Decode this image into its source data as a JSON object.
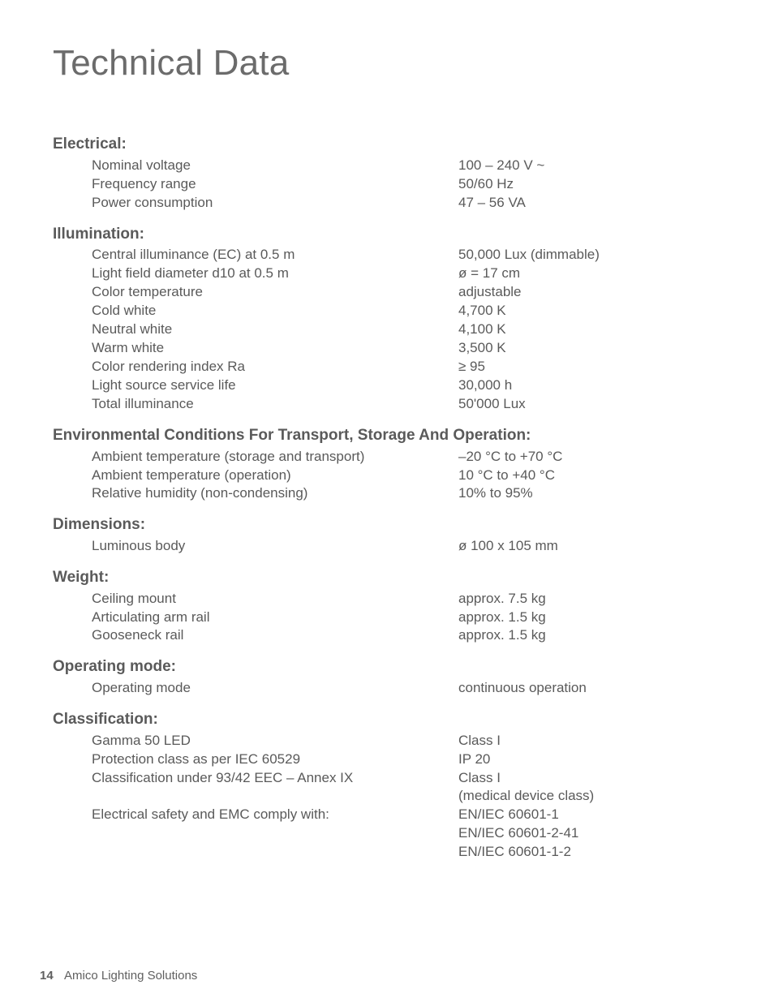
{
  "title": "Technical Data",
  "sections": [
    {
      "heading": "Electrical:",
      "rows": [
        {
          "label": "Nominal voltage",
          "value": "100 – 240 V ~"
        },
        {
          "label": "Frequency range",
          "value": "50/60 Hz"
        },
        {
          "label": "Power consumption",
          "value": "47 – 56 VA"
        }
      ]
    },
    {
      "heading": "Illumination:",
      "rows": [
        {
          "label": "Central illuminance (EC) at 0.5 m",
          "value": "50,000 Lux (dimmable)"
        },
        {
          "label": "Light field diameter d10 at 0.5 m",
          "value": "ø = 17 cm"
        },
        {
          "label": "Color temperature",
          "value": "adjustable"
        },
        {
          "label": "Cold white",
          "value": "4,700 K"
        },
        {
          "label": "Neutral white",
          "value": "4,100 K"
        },
        {
          "label": "Warm white",
          "value": "3,500 K"
        },
        {
          "label": "Color rendering index Ra",
          "value": "≥ 95"
        },
        {
          "label": "Light source service life",
          "value": "30,000 h"
        },
        {
          "label": "Total illuminance",
          "value": "50'000 Lux"
        }
      ]
    },
    {
      "heading": "Environmental Conditions For Transport, Storage And Operation:",
      "rows": [
        {
          "label": "Ambient temperature (storage and transport)",
          "value": "–20 °C to +70 °C"
        },
        {
          "label": "Ambient temperature (operation)",
          "value": "10 °C to +40 °C"
        },
        {
          "label": "Relative humidity (non-condensing)",
          "value": "10% to 95%"
        }
      ]
    },
    {
      "heading": "Dimensions:",
      "rows": [
        {
          "label": "Luminous body",
          "value": "ø 100 x 105 mm"
        }
      ]
    },
    {
      "heading": "Weight:",
      "rows": [
        {
          "label": "Ceiling mount",
          "value": "approx. 7.5 kg"
        },
        {
          "label": "Articulating arm rail",
          "value": "approx. 1.5 kg"
        },
        {
          "label": "Gooseneck rail",
          "value": "approx. 1.5 kg"
        }
      ]
    },
    {
      "heading": "Operating mode:",
      "rows": [
        {
          "label": "Operating mode",
          "value": "continuous operation"
        }
      ]
    },
    {
      "heading": "Classification:",
      "rows": [
        {
          "label": "Gamma 50 LED",
          "value": "Class I"
        },
        {
          "label": "Protection class as per IEC 60529",
          "value": "IP 20"
        },
        {
          "label": "Classification under 93/42 EEC – Annex IX",
          "value": "Class I"
        },
        {
          "label": "",
          "value": "(medical device class)"
        },
        {
          "label": "Electrical safety and EMC comply with:",
          "value": "EN/IEC 60601-1"
        },
        {
          "label": "",
          "value": "EN/IEC 60601-2-41"
        },
        {
          "label": "",
          "value": "EN/IEC 60601-1-2"
        }
      ]
    }
  ],
  "footer": {
    "page_number": "14",
    "text": "Amico Lighting Solutions"
  }
}
